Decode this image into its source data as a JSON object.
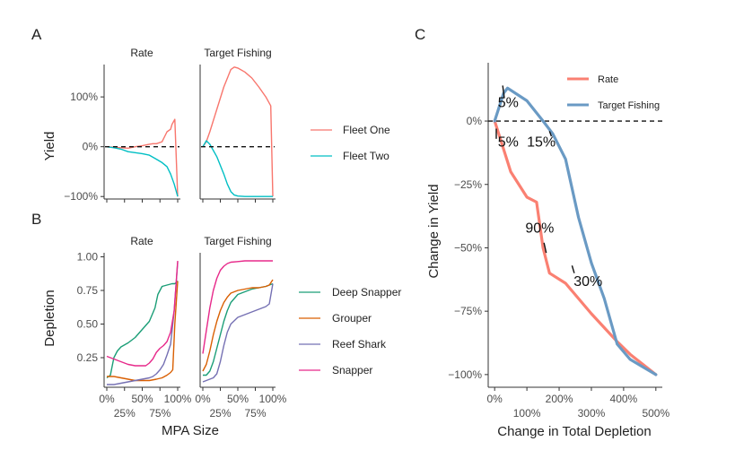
{
  "panel_labels": {
    "a": "A",
    "b": "B",
    "c": "C"
  },
  "chart_data": [
    {
      "id": "A",
      "type": "line",
      "facets": [
        "Rate",
        "Target Fishing"
      ],
      "ylabel": "Yield",
      "xlabel": "",
      "xlim": [
        0,
        1
      ],
      "ylim": [
        -1.05,
        1.65
      ],
      "yticks": [
        1.0,
        0.0,
        -1.0
      ],
      "ytick_labels": [
        "100%",
        "0%",
        "−100%"
      ],
      "reference_line": 0,
      "legend": {
        "position": "right",
        "entries": [
          "Fleet One",
          "Fleet Two"
        ]
      },
      "series": [
        {
          "name": "Fleet One",
          "color": "#F8766D",
          "facet": "Rate",
          "x": [
            0,
            0.1,
            0.2,
            0.3,
            0.4,
            0.5,
            0.6,
            0.65,
            0.7,
            0.78,
            0.85,
            0.9,
            0.92,
            0.96,
            1.0
          ],
          "y": [
            0,
            -0.01,
            -0.02,
            -0.03,
            0.0,
            0.02,
            0.05,
            0.06,
            0.06,
            0.1,
            0.3,
            0.35,
            0.45,
            0.55,
            -1.0
          ]
        },
        {
          "name": "Fleet Two",
          "color": "#00BFC4",
          "facet": "Rate",
          "x": [
            0,
            0.1,
            0.2,
            0.3,
            0.4,
            0.5,
            0.6,
            0.7,
            0.78,
            0.85,
            0.9,
            0.95,
            1.0
          ],
          "y": [
            0,
            -0.02,
            -0.05,
            -0.1,
            -0.12,
            -0.14,
            -0.17,
            -0.25,
            -0.32,
            -0.4,
            -0.55,
            -0.75,
            -1.0
          ]
        },
        {
          "name": "Fleet One",
          "color": "#F8766D",
          "facet": "Target Fishing",
          "x": [
            0,
            0.05,
            0.1,
            0.2,
            0.3,
            0.4,
            0.45,
            0.5,
            0.6,
            0.7,
            0.8,
            0.9,
            0.97,
            1.0
          ],
          "y": [
            0,
            0.1,
            0.3,
            0.75,
            1.2,
            1.55,
            1.6,
            1.58,
            1.5,
            1.38,
            1.2,
            1.0,
            0.82,
            -1.0
          ]
        },
        {
          "name": "Fleet Two",
          "color": "#00BFC4",
          "facet": "Target Fishing",
          "x": [
            0,
            0.05,
            0.1,
            0.2,
            0.3,
            0.35,
            0.4,
            0.45,
            0.5,
            0.6,
            0.7,
            0.8,
            0.9,
            1.0
          ],
          "y": [
            0,
            0.12,
            0.05,
            -0.2,
            -0.55,
            -0.75,
            -0.9,
            -0.97,
            -0.99,
            -1.0,
            -1.0,
            -1.0,
            -1.0,
            -1.0
          ]
        }
      ]
    },
    {
      "id": "B",
      "type": "line",
      "facets": [
        "Rate",
        "Target Fishing"
      ],
      "ylabel": "Depletion",
      "xlabel": "MPA Size",
      "xlim": [
        0,
        1
      ],
      "ylim": [
        0.03,
        1.03
      ],
      "yticks": [
        1.0,
        0.75,
        0.5,
        0.25
      ],
      "ytick_labels": [
        "1.00",
        "0.75",
        "0.50",
        "0.25"
      ],
      "xticks": [
        0,
        0.25,
        0.5,
        0.75,
        1.0
      ],
      "xtick_labels": [
        "0%",
        "25%",
        "50%",
        "75%",
        "100%"
      ],
      "legend": {
        "position": "right",
        "entries": [
          "Deep Snapper",
          "Grouper",
          "Reef Shark",
          "Snapper"
        ]
      },
      "series": [
        {
          "name": "Deep Snapper",
          "color": "#1B9E77",
          "facet": "Rate",
          "x": [
            0,
            0.05,
            0.1,
            0.15,
            0.2,
            0.3,
            0.4,
            0.5,
            0.6,
            0.68,
            0.72,
            0.78,
            0.85,
            0.92,
            0.96,
            1.0
          ],
          "y": [
            0.1,
            0.12,
            0.25,
            0.3,
            0.33,
            0.36,
            0.4,
            0.46,
            0.52,
            0.62,
            0.72,
            0.78,
            0.79,
            0.8,
            0.8,
            0.82
          ]
        },
        {
          "name": "Grouper",
          "color": "#D95F02",
          "facet": "Rate",
          "x": [
            0,
            0.1,
            0.2,
            0.3,
            0.4,
            0.5,
            0.6,
            0.7,
            0.78,
            0.85,
            0.9,
            0.93,
            0.96,
            1.0
          ],
          "y": [
            0.11,
            0.11,
            0.1,
            0.09,
            0.08,
            0.08,
            0.08,
            0.09,
            0.1,
            0.12,
            0.14,
            0.16,
            0.5,
            0.82
          ]
        },
        {
          "name": "Reef Shark",
          "color": "#7570B3",
          "facet": "Rate",
          "x": [
            0,
            0.1,
            0.2,
            0.3,
            0.4,
            0.5,
            0.6,
            0.65,
            0.7,
            0.75,
            0.8,
            0.85,
            0.9,
            0.95,
            1.0
          ],
          "y": [
            0.05,
            0.05,
            0.06,
            0.07,
            0.08,
            0.09,
            0.1,
            0.11,
            0.13,
            0.16,
            0.2,
            0.27,
            0.35,
            0.6,
            0.96
          ]
        },
        {
          "name": "Snapper",
          "color": "#E7298A",
          "facet": "Rate",
          "x": [
            0,
            0.1,
            0.2,
            0.3,
            0.4,
            0.5,
            0.55,
            0.6,
            0.65,
            0.7,
            0.75,
            0.8,
            0.85,
            0.9,
            0.95,
            1.0
          ],
          "y": [
            0.26,
            0.24,
            0.22,
            0.2,
            0.19,
            0.19,
            0.19,
            0.21,
            0.24,
            0.29,
            0.32,
            0.34,
            0.37,
            0.44,
            0.6,
            0.97
          ]
        },
        {
          "name": "Deep Snapper",
          "color": "#1B9E77",
          "facet": "Target Fishing",
          "x": [
            0,
            0.05,
            0.1,
            0.15,
            0.2,
            0.25,
            0.3,
            0.35,
            0.4,
            0.5,
            0.6,
            0.7,
            0.8,
            0.9,
            0.95,
            1.0
          ],
          "y": [
            0.12,
            0.12,
            0.15,
            0.22,
            0.32,
            0.42,
            0.52,
            0.6,
            0.66,
            0.72,
            0.74,
            0.76,
            0.77,
            0.78,
            0.79,
            0.8
          ]
        },
        {
          "name": "Grouper",
          "color": "#D95F02",
          "facet": "Target Fishing",
          "x": [
            0,
            0.05,
            0.1,
            0.15,
            0.2,
            0.25,
            0.3,
            0.35,
            0.4,
            0.5,
            0.6,
            0.7,
            0.8,
            0.9,
            0.95,
            1.0
          ],
          "y": [
            0.15,
            0.2,
            0.3,
            0.42,
            0.52,
            0.6,
            0.66,
            0.7,
            0.73,
            0.75,
            0.76,
            0.77,
            0.77,
            0.78,
            0.79,
            0.83
          ]
        },
        {
          "name": "Reef Shark",
          "color": "#7570B3",
          "facet": "Target Fishing",
          "x": [
            0,
            0.05,
            0.1,
            0.15,
            0.2,
            0.25,
            0.3,
            0.35,
            0.4,
            0.5,
            0.6,
            0.7,
            0.8,
            0.9,
            0.95,
            1.0
          ],
          "y": [
            0.07,
            0.08,
            0.09,
            0.1,
            0.13,
            0.22,
            0.34,
            0.44,
            0.5,
            0.55,
            0.57,
            0.59,
            0.61,
            0.63,
            0.65,
            0.8
          ]
        },
        {
          "name": "Snapper",
          "color": "#E7298A",
          "facet": "Target Fishing",
          "x": [
            0,
            0.05,
            0.1,
            0.15,
            0.2,
            0.25,
            0.3,
            0.35,
            0.4,
            0.5,
            0.6,
            0.7,
            0.8,
            0.9,
            1.0
          ],
          "y": [
            0.28,
            0.45,
            0.62,
            0.75,
            0.84,
            0.9,
            0.93,
            0.95,
            0.96,
            0.965,
            0.97,
            0.97,
            0.97,
            0.97,
            0.97
          ]
        }
      ]
    },
    {
      "id": "C",
      "type": "line",
      "ylabel": "Change in Yield",
      "xlabel": "Change in Total Depletion",
      "xlim": [
        -0.2,
        5.2
      ],
      "ylim": [
        -1.05,
        0.23
      ],
      "xticks": [
        0,
        1,
        2,
        3,
        4,
        5
      ],
      "xtick_labels": [
        "0%",
        "100%",
        "200%",
        "300%",
        "400%",
        "500%"
      ],
      "yticks": [
        0,
        -0.25,
        -0.5,
        -0.75,
        -1.0
      ],
      "ytick_labels": [
        "0%",
        "−25%",
        "−50%",
        "−75%",
        "−100%"
      ],
      "reference_line": 0,
      "legend": {
        "position": "top-right",
        "entries": [
          "Rate",
          "Target Fishing"
        ]
      },
      "series": [
        {
          "name": "Rate",
          "color": "#FA8072",
          "x": [
            0,
            0.2,
            0.5,
            1.0,
            1.3,
            1.5,
            1.7,
            2.2,
            3.0,
            3.8,
            4.2,
            4.6,
            5.0
          ],
          "y": [
            0,
            -0.08,
            -0.2,
            -0.3,
            -0.32,
            -0.5,
            -0.6,
            -0.64,
            -0.76,
            -0.87,
            -0.92,
            -0.96,
            -1.0
          ]
        },
        {
          "name": "Target Fishing",
          "color": "#6A9AC4",
          "x": [
            0,
            0.15,
            0.28,
            0.4,
            1.0,
            1.5,
            1.8,
            2.2,
            2.6,
            3.0,
            3.4,
            3.8,
            4.2,
            4.6,
            5.0
          ],
          "y": [
            0,
            0.06,
            0.11,
            0.13,
            0.08,
            0.0,
            -0.05,
            -0.15,
            -0.38,
            -0.56,
            -0.7,
            -0.88,
            -0.94,
            -0.97,
            -1.0
          ]
        }
      ],
      "annotations": [
        {
          "text": "5%",
          "x": 0.1,
          "y": 0.055,
          "tick": [
            [
              0.25,
              0.14
            ],
            [
              0.3,
              0.09
            ]
          ]
        },
        {
          "text": "5%",
          "x": 0.1,
          "y": -0.1,
          "tick": [
            [
              0.05,
              -0.03
            ],
            [
              0.05,
              -0.07
            ]
          ]
        },
        {
          "text": "15%",
          "x": 1.0,
          "y": -0.1,
          "tick": [
            [
              1.7,
              -0.04
            ],
            [
              1.76,
              -0.06
            ]
          ]
        },
        {
          "text": "90%",
          "x": 0.95,
          "y": -0.44,
          "tick": [
            [
              1.53,
              -0.48
            ],
            [
              1.6,
              -0.52
            ]
          ]
        },
        {
          "text": "30%",
          "x": 2.45,
          "y": -0.65,
          "tick": [
            [
              2.4,
              -0.57
            ],
            [
              2.47,
              -0.6
            ]
          ]
        }
      ]
    }
  ]
}
